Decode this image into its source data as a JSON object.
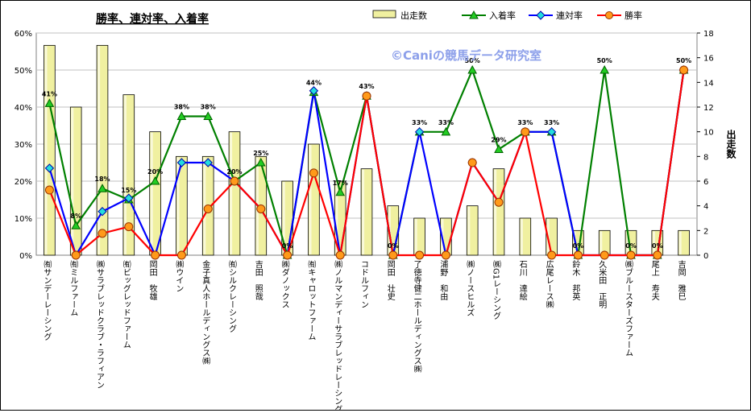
{
  "chart_data": {
    "type": "bar+line",
    "title": "勝率、連対率、入着率",
    "watermark": "©Caniの競馬データ研究室",
    "y_left": {
      "ticks": [
        "0%",
        "10%",
        "20%",
        "30%",
        "40%",
        "50%",
        "60%"
      ],
      "ylim": [
        0,
        0.6
      ]
    },
    "y_right": {
      "label": "出走数",
      "ticks": [
        "0",
        "2",
        "4",
        "6",
        "8",
        "10",
        "12",
        "14",
        "16",
        "18"
      ],
      "ylim": [
        0,
        18
      ]
    },
    "legend": [
      {
        "name": "出走数",
        "color": "#f0f0a0"
      },
      {
        "name": "入着率",
        "color": "#008000"
      },
      {
        "name": "連対率",
        "color": "#0000ff"
      },
      {
        "name": "勝率",
        "color": "#ff0000"
      }
    ],
    "categories": [
      "㈲サンデーレーシング",
      "㈲ミルファーム",
      "㈱サラブレッドクラブ・ラフィアン",
      "㈲ビッグレッドファーム",
      "岡田　牧雄",
      "㈱ウイン",
      "金子真人ホールディングス㈱",
      "㈲シルクレーシング",
      "吉田　照哉",
      "㈱ダノックス",
      "㈲キャロットファーム",
      "㈱ノルマンディーサラブレッドレーシング",
      "コドルフィン",
      "岡田　壮史",
      "了徳寺健二ホールディングス㈱",
      "浦野　和由",
      "㈱ノースヒルズ",
      "㈱G1レーシング",
      "石川　達絵",
      "広尾レース㈱",
      "鈴木　邦英",
      "久米田　正明",
      "㈱ブルースターズファーム",
      "尾上　寿夫",
      "吉岡　雅巳"
    ],
    "series": [
      {
        "name": "出走数",
        "type": "bar",
        "color": "#f0f0a0",
        "values": [
          17,
          12,
          17,
          13,
          10,
          8,
          8,
          10,
          8,
          6,
          9,
          6,
          7,
          4,
          3,
          3,
          4,
          7,
          3,
          3,
          2,
          2,
          2,
          2,
          2
        ]
      },
      {
        "name": "入着率",
        "type": "line",
        "color": "#008000",
        "marker": "triangle",
        "values": [
          0.41,
          0.08,
          0.18,
          0.15,
          0.2,
          0.375,
          0.375,
          0.2,
          0.25,
          0.0,
          0.44,
          0.17,
          0.43,
          0.0,
          0.333,
          0.333,
          0.5,
          0.286,
          0.333,
          0.333,
          0.0,
          0.5,
          0.0,
          0.0,
          0.5
        ]
      },
      {
        "name": "連対率",
        "type": "line",
        "color": "#0000ff",
        "marker": "diamond",
        "values": [
          0.235,
          0.0,
          0.118,
          0.154,
          0.0,
          0.25,
          0.25,
          0.2,
          0.125,
          0.0,
          0.444,
          0.0,
          0.43,
          0.0,
          0.333,
          0.0,
          0.25,
          0.143,
          0.333,
          0.333,
          0.0,
          0.0,
          0.0,
          0.0,
          0.5
        ]
      },
      {
        "name": "勝率",
        "type": "line",
        "color": "#ff0000",
        "marker": "circle",
        "values": [
          0.176,
          0.0,
          0.059,
          0.077,
          0.0,
          0.0,
          0.125,
          0.2,
          0.125,
          0.0,
          0.222,
          0.0,
          0.43,
          0.0,
          0.0,
          0.0,
          0.25,
          0.143,
          0.333,
          0.0,
          0.0,
          0.0,
          0.0,
          0.0,
          0.5
        ]
      }
    ],
    "data_labels": [
      "41%",
      "8%",
      "18%",
      "15%",
      "20%",
      "38%",
      "38%",
      "20%",
      "25%",
      "0%",
      "44%",
      "17%",
      "43%",
      "0%",
      "33%",
      "33%",
      "50%",
      "29%",
      "33%",
      "33%",
      "0%",
      "50%",
      "0%",
      "0%",
      "50%"
    ],
    "grid": true
  }
}
